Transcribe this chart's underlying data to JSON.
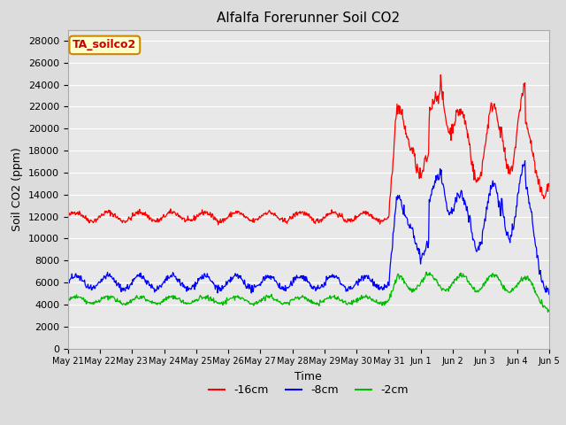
{
  "title": "Alfalfa Forerunner Soil CO2",
  "xlabel": "Time",
  "ylabel": "Soil CO2 (ppm)",
  "ylim": [
    0,
    29000
  ],
  "yticks": [
    0,
    2000,
    4000,
    6000,
    8000,
    10000,
    12000,
    14000,
    16000,
    18000,
    20000,
    22000,
    24000,
    26000,
    28000
  ],
  "background_color": "#dcdcdc",
  "plot_bg_color": "#e8e8e8",
  "grid_color": "#ffffff",
  "legend_label": "TA_soilco2",
  "legend_bg": "#ffffcc",
  "legend_border": "#cc8800",
  "series_colors": [
    "#ff0000",
    "#0000ff",
    "#00bb00"
  ],
  "series_labels": [
    "-16cm",
    "-8cm",
    "-2cm"
  ],
  "x_tick_labels": [
    "May 21",
    "May 22",
    "May 23",
    "May 24",
    "May 25",
    "May 26",
    "May 27",
    "May 28",
    "May 29",
    "May 30",
    "May 31",
    "Jun 1",
    "Jun 2",
    "Jun 3",
    "Jun 4",
    "Jun 5"
  ],
  "n_points": 840,
  "transition_point": 560
}
